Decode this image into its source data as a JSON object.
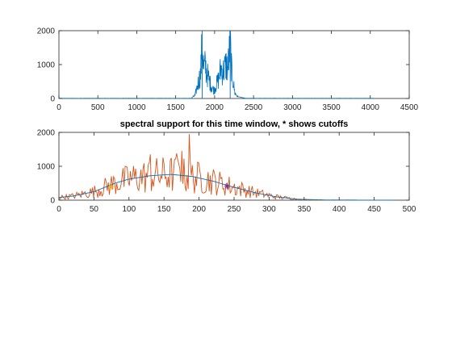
{
  "chart_data": [
    {
      "type": "line",
      "title": "",
      "xlabel": "",
      "ylabel": "",
      "xlim": [
        0,
        4500
      ],
      "ylim": [
        0,
        2000
      ],
      "xticks": [
        0,
        500,
        1000,
        1500,
        2000,
        2500,
        3000,
        3500,
        4000,
        4500
      ],
      "yticks": [
        0,
        1000,
        2000
      ],
      "grid": false,
      "legend": "none",
      "series": [
        {
          "color": "#0072BD",
          "description_points": {
            "x": [
              0,
              1700,
              1750,
              1790,
              1820,
              1840,
              1860,
              1880,
              1900,
              1950,
              1990,
              2050,
              2080,
              2110,
              2150,
              2170,
              2200,
              2220,
              2240,
              2260,
              2300,
              2400,
              4050
            ],
            "y": [
              0,
              0,
              120,
              600,
              900,
              2000,
              1100,
              1200,
              950,
              500,
              300,
              700,
              1100,
              1000,
              1250,
              1100,
              2000,
              950,
              600,
              200,
              50,
              0,
              0
            ]
          }
        }
      ]
    },
    {
      "type": "line",
      "title": "spectral support for this time window, * shows cutoffs",
      "xlabel": "",
      "ylabel": "",
      "xlim": [
        0,
        500
      ],
      "ylim": [
        0,
        2000
      ],
      "xticks": [
        0,
        50,
        100,
        150,
        200,
        250,
        300,
        350,
        400,
        450,
        500
      ],
      "yticks": [
        0,
        1000,
        2000
      ],
      "grid": false,
      "legend": "none",
      "series": [
        {
          "color": "#D95319",
          "noisy": true,
          "envelope_x": [
            0,
            20,
            50,
            80,
            100,
            130,
            160,
            190,
            220,
            250,
            280,
            310,
            340,
            380,
            480
          ],
          "envelope_y": [
            80,
            120,
            250,
            500,
            620,
            720,
            760,
            700,
            560,
            380,
            220,
            100,
            30,
            5,
            0
          ],
          "spikes": [
            {
              "x": 186,
              "y": 1950
            },
            {
              "x": 168,
              "y": 1380
            },
            {
              "x": 176,
              "y": 1450
            },
            {
              "x": 130,
              "y": 1350
            }
          ]
        },
        {
          "color": "#0072BD",
          "smooth": true,
          "x": [
            0,
            20,
            50,
            80,
            100,
            130,
            160,
            190,
            220,
            250,
            280,
            310,
            340,
            380,
            480
          ],
          "y": [
            80,
            120,
            250,
            500,
            620,
            720,
            760,
            700,
            560,
            380,
            220,
            100,
            30,
            5,
            0
          ]
        }
      ],
      "cutoff_markers": [
        {
          "x": 75,
          "y": 390,
          "color": "#EDB120"
        },
        {
          "x": 240,
          "y": 410,
          "color": "#7E2F8E"
        }
      ]
    }
  ]
}
